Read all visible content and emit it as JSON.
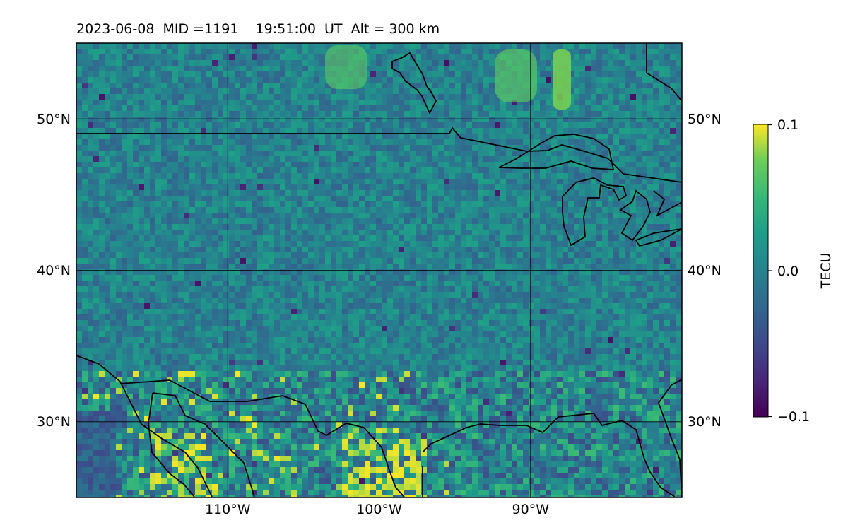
{
  "title": "2023-06-08  MID =1191    19:51:00  UT  Alt = 300 km",
  "map": {
    "projection": "plate carree",
    "lon_range": [
      -120,
      -80
    ],
    "lat_range": [
      25,
      55
    ],
    "lon_ticks": [
      {
        "value": -110,
        "label": "110°W"
      },
      {
        "value": -100,
        "label": "100°W"
      },
      {
        "value": -90,
        "label": "90°W"
      }
    ],
    "lat_ticks": [
      {
        "value": 50,
        "label": "50°N"
      },
      {
        "value": 40,
        "label": "40°N"
      },
      {
        "value": 30,
        "label": "30°N"
      }
    ],
    "field": "TEC perturbation (dTEC)",
    "colormap": "viridis",
    "colors": {
      "low": "#440154",
      "mid": "#21918c",
      "high": "#fde725",
      "grid": "#000000",
      "coast": "#000000"
    }
  },
  "colorbar": {
    "label": "TECU",
    "vmin": -0.1,
    "vmax": 0.1,
    "ticks": [
      {
        "value": 0.1,
        "label": "0.1"
      },
      {
        "value": 0.0,
        "label": "0.0"
      },
      {
        "value": -0.1,
        "label": "−0.1"
      }
    ]
  }
}
